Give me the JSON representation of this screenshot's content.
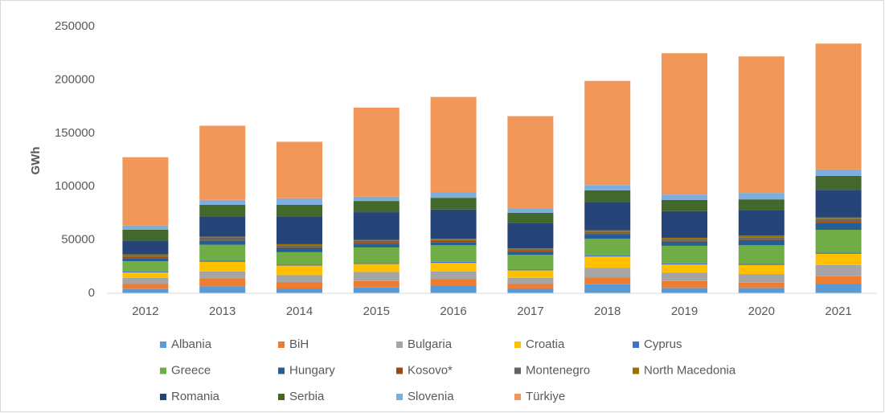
{
  "chart_data": {
    "type": "stacked_bar",
    "y_label": "GWh",
    "categories": [
      "2012",
      "2013",
      "2014",
      "2015",
      "2016",
      "2017",
      "2018",
      "2019",
      "2020",
      "2021"
    ],
    "ylim": [
      0,
      250000
    ],
    "yticks": [
      0,
      50000,
      100000,
      150000,
      200000,
      250000
    ],
    "grid": false,
    "legend": "bottom",
    "series": [
      {
        "name": "Albania",
        "color": "#5b9bd5",
        "values": [
          4000,
          6500,
          4500,
          5500,
          7500,
          4500,
          8500,
          5000,
          5000,
          9000
        ]
      },
      {
        "name": "BiH",
        "color": "#ed7d31",
        "values": [
          5000,
          7500,
          6000,
          6000,
          6000,
          4500,
          6500,
          6500,
          5000,
          7000
        ]
      },
      {
        "name": "Bulgaria",
        "color": "#a5a5a5",
        "values": [
          5500,
          6500,
          6500,
          8500,
          7000,
          5500,
          9000,
          8000,
          8000,
          10500
        ]
      },
      {
        "name": "Croatia",
        "color": "#ffc000",
        "values": [
          5000,
          9000,
          9000,
          7500,
          8000,
          7000,
          10500,
          7500,
          8500,
          10500
        ]
      },
      {
        "name": "Cyprus",
        "color": "#4472c4",
        "values": [
          1000,
          1000,
          1000,
          1000,
          1000,
          1000,
          1000,
          1000,
          1000,
          1000
        ]
      },
      {
        "name": "Greece",
        "color": "#70ad47",
        "values": [
          9500,
          15000,
          11500,
          14500,
          15500,
          13500,
          15500,
          16500,
          17500,
          21500
        ]
      },
      {
        "name": "Hungary",
        "color": "#255e91",
        "values": [
          3000,
          3500,
          4000,
          3500,
          3000,
          3000,
          4000,
          4000,
          5000,
          6500
        ]
      },
      {
        "name": "Kosovo*",
        "color": "#9e480e",
        "values": [
          1000,
          1000,
          1000,
          1000,
          1000,
          1000,
          1000,
          1000,
          1000,
          1500
        ]
      },
      {
        "name": "Montenegro",
        "color": "#636363",
        "values": [
          1000,
          2000,
          1500,
          1500,
          1000,
          1000,
          1500,
          1500,
          1500,
          2000
        ]
      },
      {
        "name": "North Macedonia",
        "color": "#997300",
        "values": [
          1500,
          1000,
          1000,
          1000,
          1000,
          1000,
          1500,
          1000,
          1500,
          1500
        ]
      },
      {
        "name": "Romania",
        "color": "#264478",
        "values": [
          13000,
          19000,
          26000,
          26000,
          27500,
          24000,
          26500,
          25000,
          24000,
          26000
        ]
      },
      {
        "name": "Serbia",
        "color": "#43682b",
        "values": [
          10000,
          11000,
          11000,
          10500,
          11000,
          9500,
          11000,
          10500,
          10000,
          13000
        ]
      },
      {
        "name": "Slovenia",
        "color": "#7cafdd",
        "values": [
          4000,
          4500,
          6000,
          4000,
          5000,
          4000,
          5000,
          5000,
          6000,
          6000
        ]
      },
      {
        "name": "Türkiye",
        "color": "#f1975a",
        "values": [
          64000,
          69500,
          53000,
          83500,
          89500,
          86500,
          97500,
          132500,
          128000,
          118000
        ]
      }
    ]
  }
}
